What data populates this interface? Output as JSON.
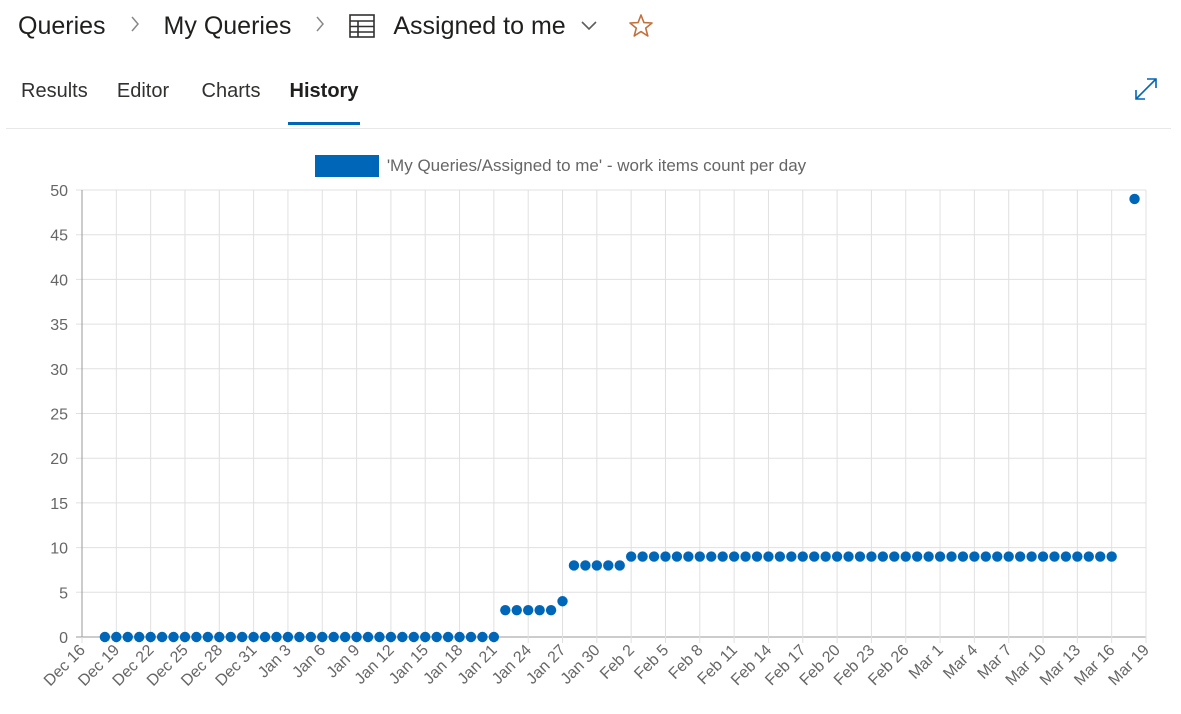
{
  "breadcrumb": {
    "root": "Queries",
    "folder": "My Queries",
    "query": "Assigned to me"
  },
  "tabs": [
    {
      "label": "Results"
    },
    {
      "label": "Editor"
    },
    {
      "label": "Charts"
    },
    {
      "label": "History",
      "active": true
    }
  ],
  "icons": {
    "query": "table-grid-icon",
    "dropdown": "chevron-down-icon",
    "favorite": "star-outline-icon",
    "fullscreen": "expand-diagonal-icon"
  },
  "colors": {
    "accent": "#0067b8",
    "star": "#c2703d"
  },
  "chart_data": {
    "type": "scatter",
    "legend": "'My Queries/Assigned to me' - work items count per day",
    "legend_position": "top-center",
    "grid": true,
    "ylim": [
      0,
      50
    ],
    "yticks": [
      0,
      5,
      10,
      15,
      20,
      25,
      30,
      35,
      40,
      45,
      50
    ],
    "xticks": [
      "Dec 16",
      "Dec 19",
      "Dec 22",
      "Dec 25",
      "Dec 28",
      "Dec 31",
      "Jan 3",
      "Jan 6",
      "Jan 9",
      "Jan 12",
      "Jan 15",
      "Jan 18",
      "Jan 21",
      "Jan 24",
      "Jan 27",
      "Jan 30",
      "Feb 2",
      "Feb 5",
      "Feb 8",
      "Feb 11",
      "Feb 14",
      "Feb 17",
      "Feb 20",
      "Feb 23",
      "Feb 26",
      "Mar 1",
      "Mar 4",
      "Mar 7",
      "Mar 10",
      "Mar 13",
      "Mar 16",
      "Mar 19"
    ],
    "series": [
      {
        "color": "#0067b8",
        "points": [
          {
            "x": "Dec 18",
            "y": 0
          },
          {
            "x": "Dec 19",
            "y": 0
          },
          {
            "x": "Dec 20",
            "y": 0
          },
          {
            "x": "Dec 21",
            "y": 0
          },
          {
            "x": "Dec 22",
            "y": 0
          },
          {
            "x": "Dec 23",
            "y": 0
          },
          {
            "x": "Dec 24",
            "y": 0
          },
          {
            "x": "Dec 25",
            "y": 0
          },
          {
            "x": "Dec 26",
            "y": 0
          },
          {
            "x": "Dec 27",
            "y": 0
          },
          {
            "x": "Dec 28",
            "y": 0
          },
          {
            "x": "Dec 29",
            "y": 0
          },
          {
            "x": "Dec 30",
            "y": 0
          },
          {
            "x": "Dec 31",
            "y": 0
          },
          {
            "x": "Jan 1",
            "y": 0
          },
          {
            "x": "Jan 2",
            "y": 0
          },
          {
            "x": "Jan 3",
            "y": 0
          },
          {
            "x": "Jan 4",
            "y": 0
          },
          {
            "x": "Jan 5",
            "y": 0
          },
          {
            "x": "Jan 6",
            "y": 0
          },
          {
            "x": "Jan 7",
            "y": 0
          },
          {
            "x": "Jan 8",
            "y": 0
          },
          {
            "x": "Jan 9",
            "y": 0
          },
          {
            "x": "Jan 10",
            "y": 0
          },
          {
            "x": "Jan 11",
            "y": 0
          },
          {
            "x": "Jan 12",
            "y": 0
          },
          {
            "x": "Jan 13",
            "y": 0
          },
          {
            "x": "Jan 14",
            "y": 0
          },
          {
            "x": "Jan 15",
            "y": 0
          },
          {
            "x": "Jan 16",
            "y": 0
          },
          {
            "x": "Jan 17",
            "y": 0
          },
          {
            "x": "Jan 18",
            "y": 0
          },
          {
            "x": "Jan 19",
            "y": 0
          },
          {
            "x": "Jan 20",
            "y": 0
          },
          {
            "x": "Jan 21",
            "y": 0
          },
          {
            "x": "Jan 22",
            "y": 3
          },
          {
            "x": "Jan 23",
            "y": 3
          },
          {
            "x": "Jan 24",
            "y": 3
          },
          {
            "x": "Jan 25",
            "y": 3
          },
          {
            "x": "Jan 26",
            "y": 3
          },
          {
            "x": "Jan 27",
            "y": 4
          },
          {
            "x": "Jan 28",
            "y": 8
          },
          {
            "x": "Jan 29",
            "y": 8
          },
          {
            "x": "Jan 30",
            "y": 8
          },
          {
            "x": "Jan 31",
            "y": 8
          },
          {
            "x": "Feb 1",
            "y": 8
          },
          {
            "x": "Feb 2",
            "y": 9
          },
          {
            "x": "Feb 3",
            "y": 9
          },
          {
            "x": "Feb 4",
            "y": 9
          },
          {
            "x": "Feb 5",
            "y": 9
          },
          {
            "x": "Feb 6",
            "y": 9
          },
          {
            "x": "Feb 7",
            "y": 9
          },
          {
            "x": "Feb 8",
            "y": 9
          },
          {
            "x": "Feb 9",
            "y": 9
          },
          {
            "x": "Feb 10",
            "y": 9
          },
          {
            "x": "Feb 11",
            "y": 9
          },
          {
            "x": "Feb 12",
            "y": 9
          },
          {
            "x": "Feb 13",
            "y": 9
          },
          {
            "x": "Feb 14",
            "y": 9
          },
          {
            "x": "Feb 15",
            "y": 9
          },
          {
            "x": "Feb 16",
            "y": 9
          },
          {
            "x": "Feb 17",
            "y": 9
          },
          {
            "x": "Feb 18",
            "y": 9
          },
          {
            "x": "Feb 19",
            "y": 9
          },
          {
            "x": "Feb 20",
            "y": 9
          },
          {
            "x": "Feb 21",
            "y": 9
          },
          {
            "x": "Feb 22",
            "y": 9
          },
          {
            "x": "Feb 23",
            "y": 9
          },
          {
            "x": "Feb 24",
            "y": 9
          },
          {
            "x": "Feb 25",
            "y": 9
          },
          {
            "x": "Feb 26",
            "y": 9
          },
          {
            "x": "Feb 27",
            "y": 9
          },
          {
            "x": "Feb 28",
            "y": 9
          },
          {
            "x": "Mar 1",
            "y": 9
          },
          {
            "x": "Mar 2",
            "y": 9
          },
          {
            "x": "Mar 3",
            "y": 9
          },
          {
            "x": "Mar 4",
            "y": 9
          },
          {
            "x": "Mar 5",
            "y": 9
          },
          {
            "x": "Mar 6",
            "y": 9
          },
          {
            "x": "Mar 7",
            "y": 9
          },
          {
            "x": "Mar 8",
            "y": 9
          },
          {
            "x": "Mar 9",
            "y": 9
          },
          {
            "x": "Mar 10",
            "y": 9
          },
          {
            "x": "Mar 11",
            "y": 9
          },
          {
            "x": "Mar 12",
            "y": 9
          },
          {
            "x": "Mar 13",
            "y": 9
          },
          {
            "x": "Mar 14",
            "y": 9
          },
          {
            "x": "Mar 15",
            "y": 9
          },
          {
            "x": "Mar 16",
            "y": 9
          },
          {
            "x": "Mar 18",
            "y": 49
          }
        ]
      }
    ]
  }
}
